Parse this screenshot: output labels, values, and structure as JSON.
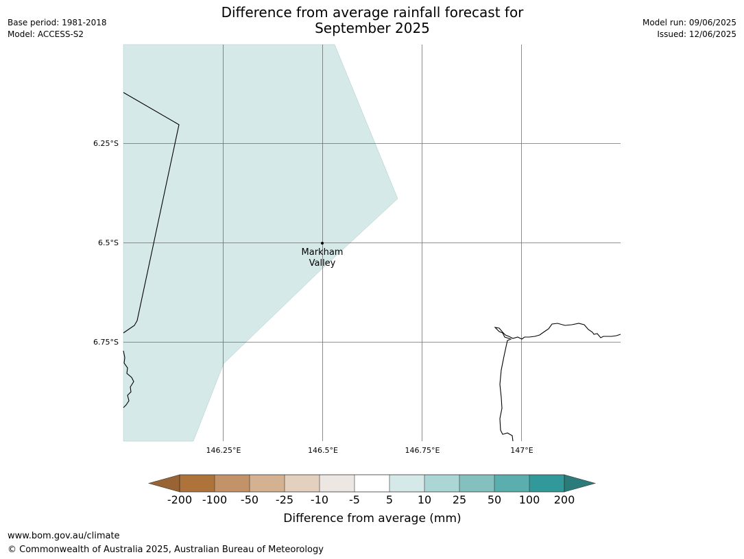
{
  "header": {
    "title_line1": "Difference from average rainfall forecast for",
    "title_line2": "September 2025",
    "base_period": "Base period: 1981-2018",
    "model": "Model: ACCESS-S2",
    "model_run": "Model run: 09/06/2025",
    "issued": "Issued: 12/06/2025"
  },
  "map": {
    "latitude_labels": [
      "6.25°S",
      "6.5°S",
      "6.75°S"
    ],
    "longitude_labels": [
      "146.25°E",
      "146.5°E",
      "146.75°E",
      "147°E"
    ],
    "place": {
      "line1": "Markham",
      "line2": "Valley"
    },
    "forecast_fill_category": "5 to 10",
    "forecast_fill_color": "#d5e9e8"
  },
  "colorbar": {
    "title": "Difference from average (mm)",
    "tick_labels": [
      "-200",
      "-100",
      "-50",
      "-25",
      "-10",
      "-5",
      "5",
      "10",
      "25",
      "50",
      "100",
      "200"
    ],
    "colors": [
      "#9a6333",
      "#ae733b",
      "#c29368",
      "#d4b291",
      "#e4d0be",
      "#ece7e3",
      "#ffffff",
      "#d5e9e8",
      "#acd6d5",
      "#83c0be",
      "#5aaead",
      "#32999a",
      "#2b7b7b"
    ]
  },
  "footer": {
    "url": "www.bom.gov.au/climate",
    "copyright": "© Commonwealth of Australia 2025, Australian Bureau of Meteorology"
  }
}
